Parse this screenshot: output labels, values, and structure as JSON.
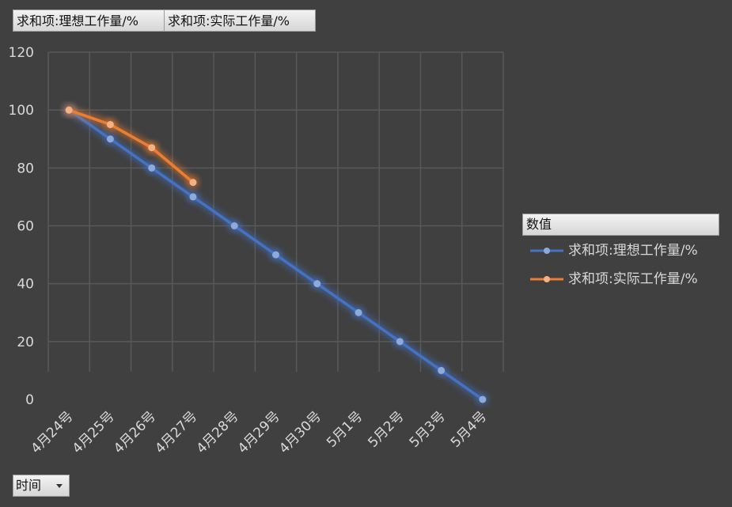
{
  "field_buttons": [
    "求和项:理想工作量/%",
    "求和项:实际工作量/%"
  ],
  "legend": {
    "title": "数值",
    "items": [
      "求和项:理想工作量/%",
      "求和项:实际工作量/%"
    ]
  },
  "filter": {
    "label": "时间"
  },
  "colors": {
    "ideal": "#4472c4",
    "actual": "#ed7d31",
    "background": "#404040",
    "grid": "#595959",
    "text": "#d9d9d9"
  },
  "chart_data": {
    "type": "line",
    "categories": [
      "4月24号",
      "4月25号",
      "4月26号",
      "4月27号",
      "4月28号",
      "4月29号",
      "4月30号",
      "5月1号",
      "5月2号",
      "5月3号",
      "5月4号"
    ],
    "series": [
      {
        "name": "求和项:理想工作量/%",
        "values": [
          100,
          90,
          80,
          70,
          60,
          50,
          40,
          30,
          20,
          10,
          0
        ]
      },
      {
        "name": "求和项:实际工作量/%",
        "values": [
          100,
          95,
          87,
          75,
          null,
          null,
          null,
          null,
          null,
          null,
          null
        ]
      }
    ],
    "ylim": [
      0,
      120
    ],
    "yticks": [
      0,
      20,
      40,
      60,
      80,
      100,
      120
    ],
    "grid": true,
    "legend_position": "right"
  }
}
